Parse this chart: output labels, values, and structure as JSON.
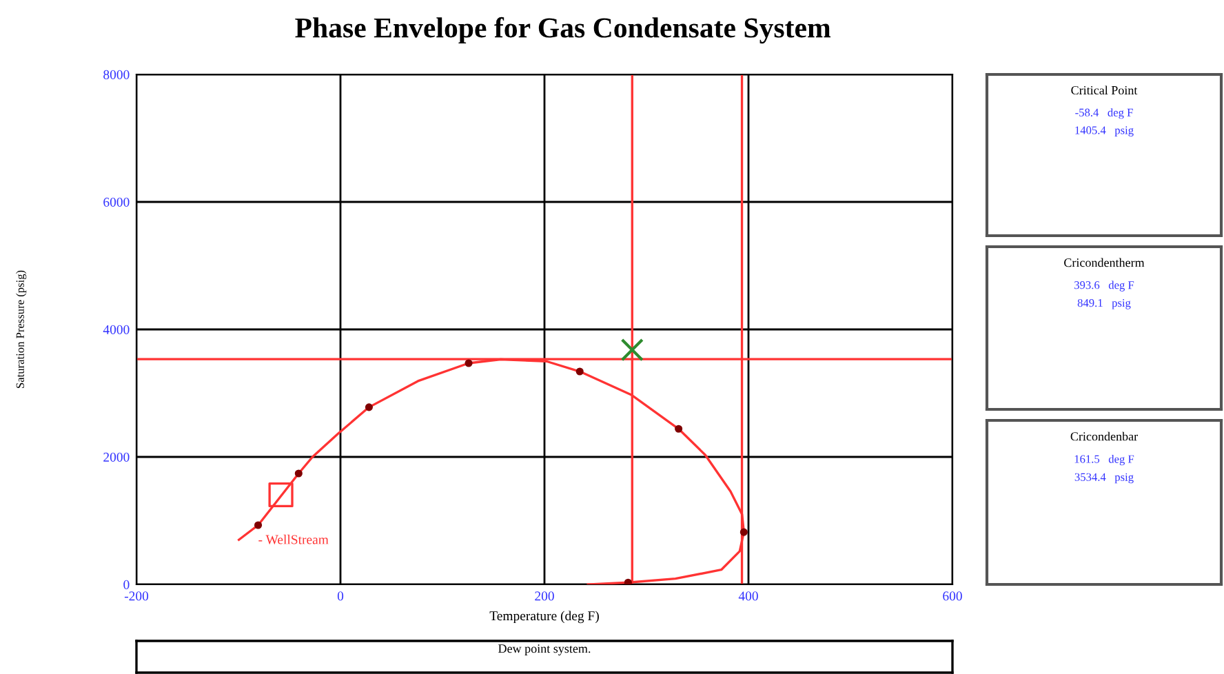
{
  "chart_data": [
    {
      "type": "line",
      "title": "Phase Envelope for Gas Condensate System",
      "xlabel": "Temperature (deg F)",
      "ylabel": "Saturation Pressure (psig)",
      "xlim": [
        -200,
        600
      ],
      "xticks": [
        -200,
        0,
        200,
        400,
        600
      ],
      "ylim": [
        0,
        8000
      ],
      "yticks": [
        0,
        2000,
        4000,
        6000,
        8000
      ],
      "grid": true,
      "series": [
        {
          "type": "line",
          "color": "#ff3333",
          "x": [
            -99.6,
            -80.7,
            -41,
            -27.4,
            -2.7,
            28,
            76,
            125.7,
            157,
            202,
            234.6,
            285.6,
            331.5,
            357.7,
            382.4,
            393.7,
            395.5,
            391.4,
            373.4,
            328.4,
            282,
            242.6
          ],
          "values": [
            700,
            930,
            1740,
            2000,
            2360,
            2780,
            3190,
            3470,
            3530,
            3500,
            3340,
            2970,
            2440,
            2030,
            1460,
            1100,
            820,
            520,
            230,
            90,
            30,
            0
          ]
        },
        {
          "type": "scatter",
          "marker": "circle",
          "color": "#800000",
          "x": [
            -80.7,
            -41,
            28,
            125.7,
            234.6,
            331.5,
            395.5,
            282
          ],
          "values": [
            930,
            1740,
            2780,
            3470,
            3340,
            2440,
            820,
            30
          ]
        },
        {
          "type": "scatter",
          "marker": "square",
          "color": "#ff3333",
          "x": [
            -58.4
          ],
          "values": [
            1405.4
          ]
        },
        {
          "type": "scatter",
          "marker": "cross",
          "color": "#2e8b2e",
          "x": [
            286
          ],
          "values": [
            3680
          ]
        }
      ],
      "ref_lines": [
        {
          "axis": "y",
          "value": 3534.4,
          "color": "#ff3333"
        },
        {
          "axis": "x",
          "value": 393.6,
          "color": "#ff3333"
        },
        {
          "axis": "x",
          "value": 286,
          "color": "#ff3333"
        }
      ],
      "annotations": [
        {
          "text": "- WellStream",
          "x": -80.7,
          "y": 930
        }
      ]
    },
    {
      "type": "other",
      "title": "Critical Point",
      "annotations": [
        "-58.4   deg F",
        "1405.4   psig"
      ]
    },
    {
      "type": "other",
      "title": "Cricondentherm",
      "annotations": [
        "393.6   deg F",
        "849.1   psig"
      ]
    },
    {
      "type": "other",
      "title": "Cricondenbar",
      "annotations": [
        "161.5   deg F",
        "3534.4   psig"
      ]
    },
    {
      "type": "other",
      "title": "Dew point system."
    }
  ]
}
